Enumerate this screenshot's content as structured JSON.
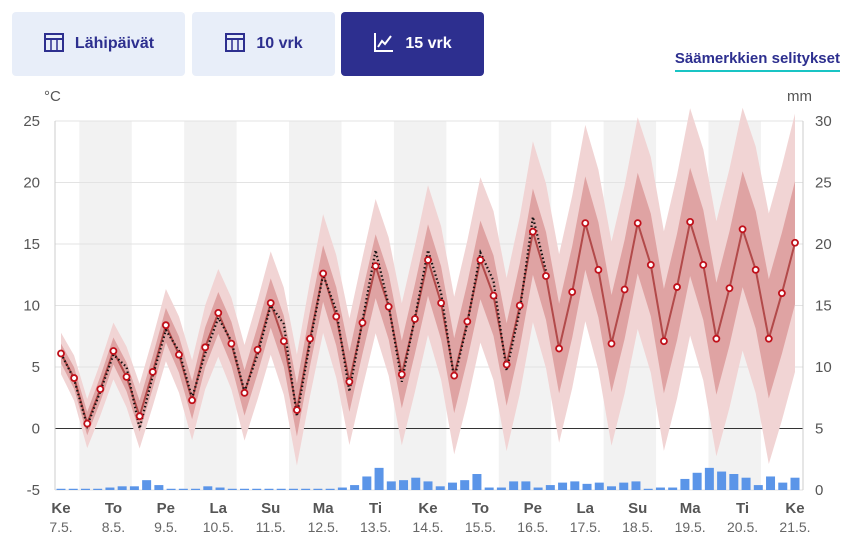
{
  "tabs": [
    {
      "label": "Lähipäivät",
      "icon": "calendar-icon",
      "active": false
    },
    {
      "label": "10 vrk",
      "icon": "calendar-icon",
      "active": false
    },
    {
      "label": "15 vrk",
      "icon": "line-chart-icon",
      "active": true
    }
  ],
  "legend_link": "Säämerkkien selitykset",
  "colors": {
    "primary": "#2d2f8f",
    "tab_bg": "#e8eef9",
    "temp_line": "#b24a4a",
    "point": "#c0101a",
    "band_inner": "#dc9a9a",
    "band_outer": "#f1d4d4",
    "precip": "#5b95e8",
    "underline": "#19c4c4"
  },
  "chart_data": {
    "type": "line",
    "y_left_label": "°C",
    "y_right_label": "mm",
    "y_left_ticks": [
      "25",
      "20",
      "15",
      "10",
      "5",
      "0",
      "-5"
    ],
    "y_right_ticks": [
      "30",
      "25",
      "20",
      "15",
      "10",
      "5",
      "0"
    ],
    "ylim_left": [
      -5,
      25
    ],
    "ylim_right": [
      0,
      30
    ],
    "x_day_labels": [
      {
        "day": "Ke",
        "date": "7.5."
      },
      {
        "day": "To",
        "date": "8.5."
      },
      {
        "day": "Pe",
        "date": "9.5."
      },
      {
        "day": "La",
        "date": "10.5."
      },
      {
        "day": "Su",
        "date": "11.5."
      },
      {
        "day": "Ma",
        "date": "12.5."
      },
      {
        "day": "Ti",
        "date": "13.5."
      },
      {
        "day": "Ke",
        "date": "14.5."
      },
      {
        "day": "To",
        "date": "15.5."
      },
      {
        "day": "Pe",
        "date": "16.5."
      },
      {
        "day": "La",
        "date": "17.5."
      },
      {
        "day": "Su",
        "date": "18.5."
      },
      {
        "day": "Ma",
        "date": "19.5."
      },
      {
        "day": "Ti",
        "date": "20.5."
      },
      {
        "day": "Ke",
        "date": "21.5."
      }
    ],
    "x_range_days": [
      0,
      14
    ],
    "temperature_points": [
      [
        0.0,
        6.1
      ],
      [
        0.25,
        4.1
      ],
      [
        0.5,
        0.4
      ],
      [
        0.75,
        3.2
      ],
      [
        1.0,
        6.3
      ],
      [
        1.25,
        4.2
      ],
      [
        1.5,
        1.0
      ],
      [
        1.75,
        4.6
      ],
      [
        2.0,
        8.4
      ],
      [
        2.25,
        6.0
      ],
      [
        2.5,
        2.3
      ],
      [
        2.75,
        6.6
      ],
      [
        3.0,
        9.4
      ],
      [
        3.25,
        6.9
      ],
      [
        3.5,
        2.9
      ],
      [
        3.75,
        6.4
      ],
      [
        4.0,
        10.2
      ],
      [
        4.25,
        7.1
      ],
      [
        4.5,
        1.5
      ],
      [
        4.75,
        7.3
      ],
      [
        5.0,
        12.6
      ],
      [
        5.25,
        9.1
      ],
      [
        5.5,
        3.8
      ],
      [
        5.75,
        8.6
      ],
      [
        6.0,
        13.2
      ],
      [
        6.25,
        9.9
      ],
      [
        6.5,
        4.4
      ],
      [
        6.75,
        8.9
      ],
      [
        7.0,
        13.7
      ],
      [
        7.25,
        10.2
      ],
      [
        7.5,
        4.3
      ],
      [
        7.75,
        8.7
      ],
      [
        8.0,
        13.7
      ],
      [
        8.25,
        10.8
      ],
      [
        8.5,
        5.2
      ],
      [
        8.75,
        10.0
      ],
      [
        9.0,
        16.0
      ],
      [
        9.25,
        12.4
      ],
      [
        9.5,
        6.5
      ],
      [
        9.75,
        11.1
      ],
      [
        10.0,
        16.7
      ],
      [
        10.25,
        12.9
      ],
      [
        10.5,
        6.9
      ],
      [
        10.75,
        11.3
      ],
      [
        11.0,
        16.7
      ],
      [
        11.25,
        13.3
      ],
      [
        11.5,
        7.1
      ],
      [
        11.75,
        11.5
      ],
      [
        12.0,
        16.8
      ],
      [
        12.25,
        13.3
      ],
      [
        12.5,
        7.3
      ],
      [
        12.75,
        11.4
      ],
      [
        13.0,
        16.2
      ],
      [
        13.25,
        12.9
      ],
      [
        13.5,
        7.3
      ],
      [
        13.75,
        11.0
      ],
      [
        14.0,
        15.1
      ]
    ],
    "observed_points": [
      [
        0.0,
        6.1
      ],
      [
        0.25,
        4.0
      ],
      [
        0.5,
        0.2
      ],
      [
        0.75,
        3.0
      ],
      [
        1.0,
        6.0
      ],
      [
        1.25,
        5.0
      ],
      [
        1.5,
        0.0
      ],
      [
        1.75,
        4.3
      ],
      [
        2.0,
        8.0
      ],
      [
        2.25,
        6.3
      ],
      [
        2.5,
        2.5
      ],
      [
        2.75,
        6.1
      ],
      [
        3.0,
        9.0
      ],
      [
        3.25,
        7.1
      ],
      [
        3.5,
        3.0
      ],
      [
        3.75,
        6.0
      ],
      [
        4.0,
        10.0
      ],
      [
        4.25,
        8.5
      ],
      [
        4.5,
        1.0
      ],
      [
        4.75,
        7.0
      ],
      [
        5.0,
        12.5
      ],
      [
        5.25,
        9.6
      ],
      [
        5.5,
        3.0
      ],
      [
        5.75,
        8.8
      ],
      [
        6.0,
        14.5
      ],
      [
        6.25,
        10.0
      ],
      [
        6.5,
        3.8
      ],
      [
        6.75,
        9.0
      ],
      [
        7.0,
        14.5
      ],
      [
        7.25,
        11.0
      ],
      [
        7.5,
        4.0
      ],
      [
        7.75,
        8.5
      ],
      [
        8.0,
        14.3
      ],
      [
        8.25,
        12.0
      ],
      [
        8.5,
        4.7
      ],
      [
        8.75,
        9.6
      ],
      [
        9.0,
        17.2
      ],
      [
        9.25,
        12.8
      ]
    ],
    "precipitation_mm": [
      0.1,
      0.1,
      0.1,
      0.1,
      0.2,
      0.3,
      0.3,
      0.8,
      0.4,
      0.1,
      0.1,
      0.1,
      0.3,
      0.2,
      0.1,
      0.1,
      0.1,
      0.1,
      0.1,
      0.1,
      0.1,
      0.1,
      0.1,
      0.2,
      0.4,
      1.1,
      1.8,
      0.7,
      0.8,
      1.0,
      0.7,
      0.3,
      0.6,
      0.8,
      1.3,
      0.2,
      0.2,
      0.7,
      0.7,
      0.2,
      0.4,
      0.6,
      0.7,
      0.5,
      0.6,
      0.3,
      0.6,
      0.7,
      0.1,
      0.2,
      0.2,
      0.9,
      1.4,
      1.8,
      1.5,
      1.3,
      1.0,
      0.4,
      1.1,
      0.6,
      1.0
    ]
  }
}
